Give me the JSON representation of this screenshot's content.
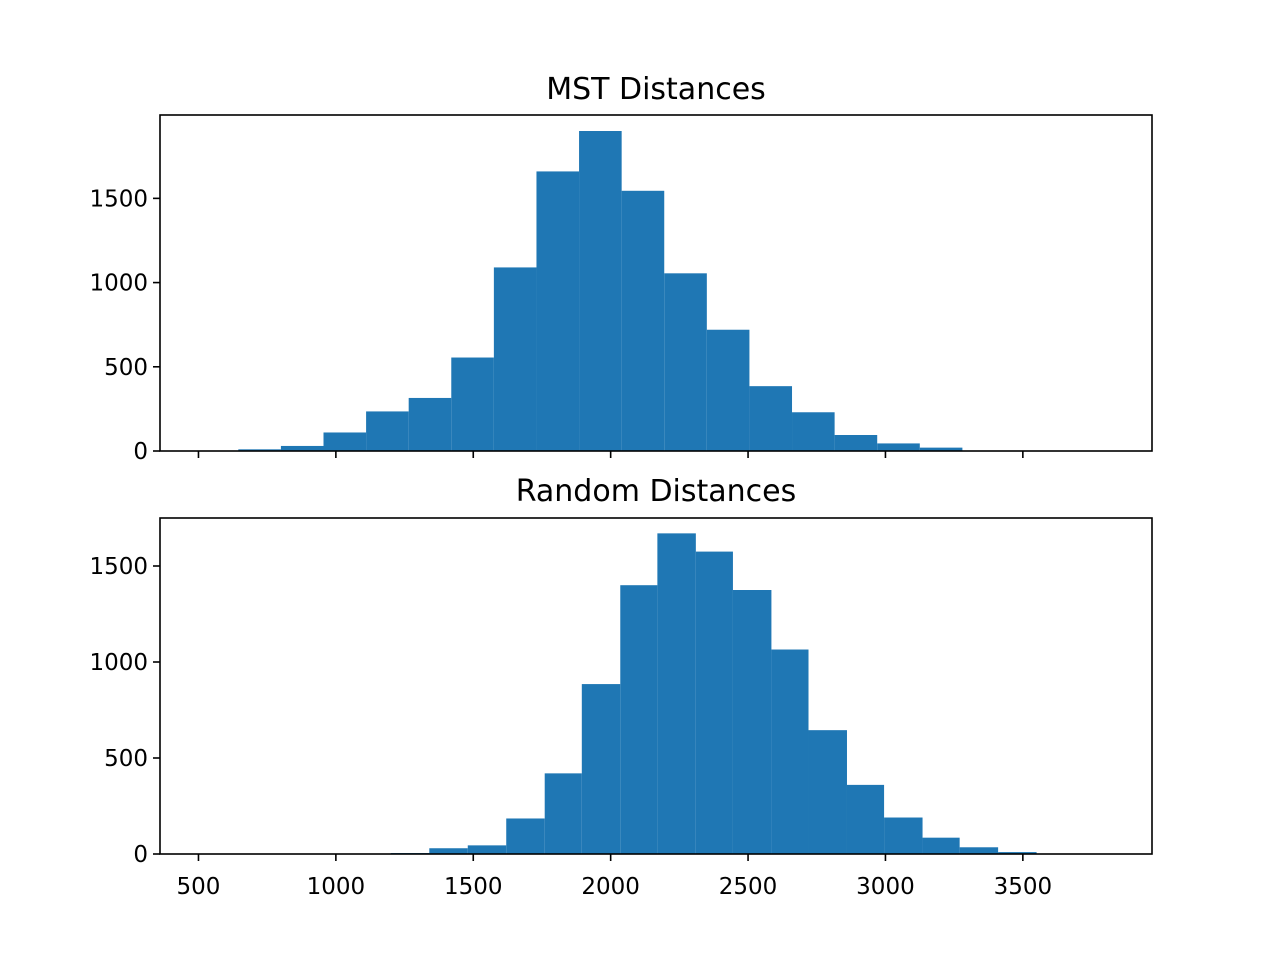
{
  "chart_data": [
    {
      "type": "bar",
      "title": "MST Distances",
      "xlabel": "",
      "ylabel": "",
      "xlim": [
        360,
        3970
      ],
      "ylim": [
        0,
        1995
      ],
      "xticks": [
        500,
        1000,
        1500,
        2000,
        2500,
        3000,
        3500
      ],
      "show_xtick_labels": false,
      "yticks": [
        0,
        500,
        1000,
        1500
      ],
      "grid": false,
      "bar_color": "#1f77b4",
      "bins": [
        {
          "x0": 645,
          "x1": 800,
          "value": 10
        },
        {
          "x0": 800,
          "x1": 955,
          "value": 30
        },
        {
          "x0": 955,
          "x1": 1110,
          "value": 110
        },
        {
          "x0": 1110,
          "x1": 1265,
          "value": 235
        },
        {
          "x0": 1265,
          "x1": 1420,
          "value": 315
        },
        {
          "x0": 1420,
          "x1": 1575,
          "value": 555
        },
        {
          "x0": 1575,
          "x1": 1730,
          "value": 1090
        },
        {
          "x0": 1730,
          "x1": 1885,
          "value": 1660
        },
        {
          "x0": 1885,
          "x1": 2040,
          "value": 1900
        },
        {
          "x0": 2040,
          "x1": 2195,
          "value": 1545
        },
        {
          "x0": 2195,
          "x1": 2350,
          "value": 1055
        },
        {
          "x0": 2350,
          "x1": 2505,
          "value": 720
        },
        {
          "x0": 2505,
          "x1": 2660,
          "value": 385
        },
        {
          "x0": 2660,
          "x1": 2815,
          "value": 230
        },
        {
          "x0": 2815,
          "x1": 2970,
          "value": 95
        },
        {
          "x0": 2970,
          "x1": 3125,
          "value": 45
        },
        {
          "x0": 3125,
          "x1": 3280,
          "value": 20
        }
      ]
    },
    {
      "type": "bar",
      "title": "Random Distances",
      "xlabel": "",
      "ylabel": "",
      "xlim": [
        360,
        3970
      ],
      "ylim": [
        0,
        1750
      ],
      "xticks": [
        500,
        1000,
        1500,
        2000,
        2500,
        3000,
        3500
      ],
      "show_xtick_labels": true,
      "yticks": [
        0,
        500,
        1000,
        1500
      ],
      "grid": false,
      "bar_color": "#1f77b4",
      "bins": [
        {
          "x0": 1200,
          "x1": 1340,
          "value": 5
        },
        {
          "x0": 1340,
          "x1": 1480,
          "value": 30
        },
        {
          "x0": 1480,
          "x1": 1620,
          "value": 45
        },
        {
          "x0": 1620,
          "x1": 1760,
          "value": 185
        },
        {
          "x0": 1760,
          "x1": 1895,
          "value": 420
        },
        {
          "x0": 1895,
          "x1": 2035,
          "value": 885
        },
        {
          "x0": 2035,
          "x1": 2170,
          "value": 1400
        },
        {
          "x0": 2170,
          "x1": 2310,
          "value": 1670
        },
        {
          "x0": 2310,
          "x1": 2445,
          "value": 1575
        },
        {
          "x0": 2445,
          "x1": 2585,
          "value": 1375
        },
        {
          "x0": 2585,
          "x1": 2720,
          "value": 1065
        },
        {
          "x0": 2720,
          "x1": 2860,
          "value": 645
        },
        {
          "x0": 2860,
          "x1": 2995,
          "value": 360
        },
        {
          "x0": 2995,
          "x1": 3135,
          "value": 190
        },
        {
          "x0": 3135,
          "x1": 3270,
          "value": 85
        },
        {
          "x0": 3270,
          "x1": 3410,
          "value": 35
        },
        {
          "x0": 3410,
          "x1": 3550,
          "value": 10
        }
      ]
    }
  ]
}
